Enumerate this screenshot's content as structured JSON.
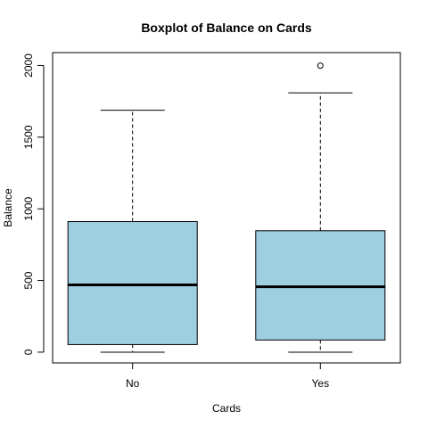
{
  "chart_data": {
    "type": "boxplot",
    "title": "Boxplot of Balance on Cards",
    "xlabel": "Cards",
    "ylabel": "Balance",
    "categories": [
      "No",
      "Yes"
    ],
    "y_ticks": [
      0,
      500,
      1000,
      1500,
      2000
    ],
    "ylim": [
      -75,
      2090
    ],
    "box_fill": "#9ecfe0",
    "series": [
      {
        "category": "No",
        "whisker_low": 0,
        "q1": 53,
        "median": 469,
        "q3": 911,
        "whisker_high": 1688,
        "outliers": []
      },
      {
        "category": "Yes",
        "whisker_low": 0,
        "q1": 85,
        "median": 456,
        "q3": 847,
        "whisker_high": 1809,
        "outliers": [
          1999
        ]
      }
    ],
    "grid": false
  }
}
